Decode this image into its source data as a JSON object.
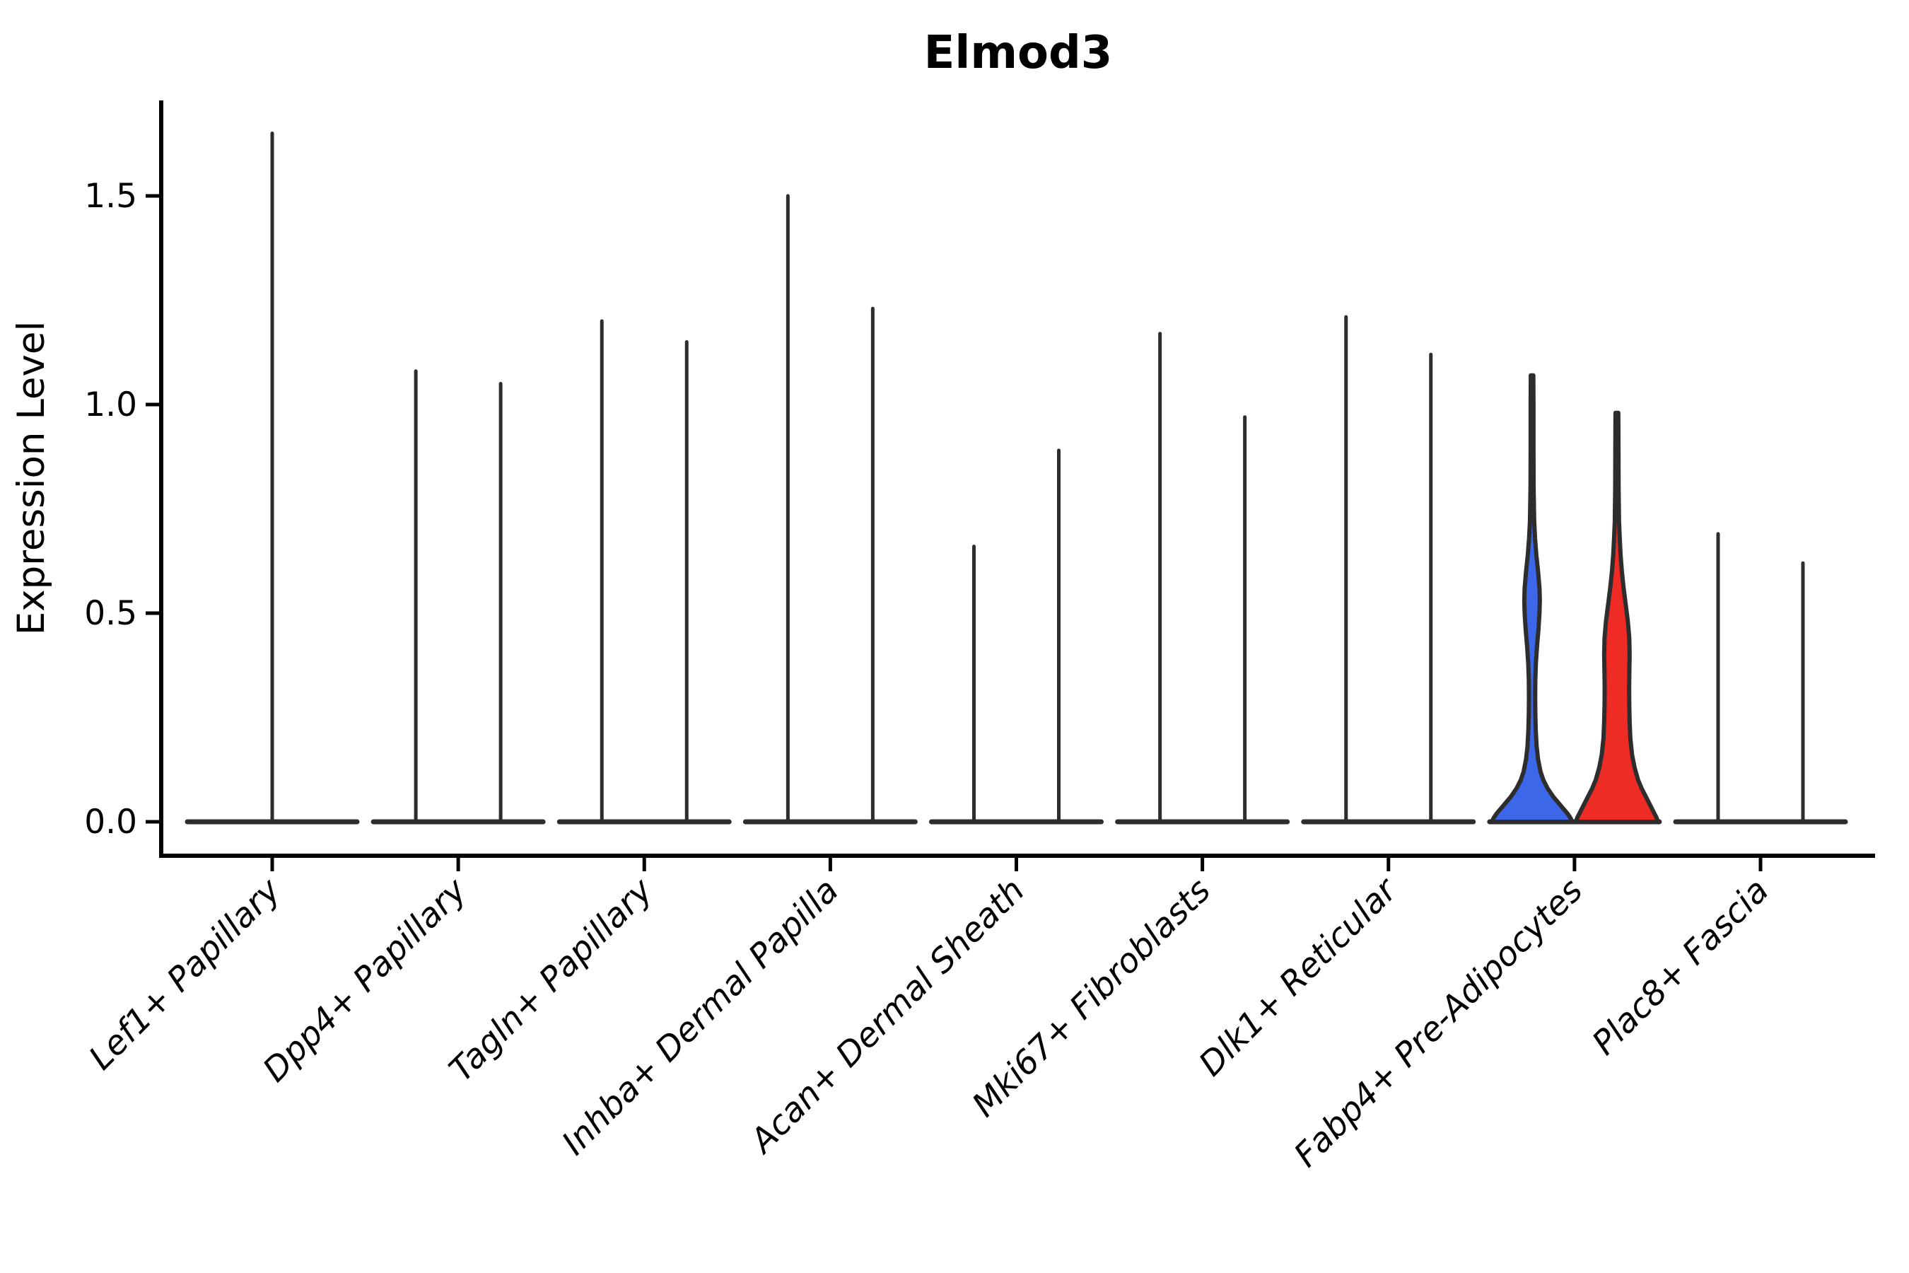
{
  "figure": {
    "background": "#ffffff",
    "outline_color": "#2d2d2d",
    "axis_color": "#000000"
  },
  "chart_data": {
    "type": "violin",
    "title": "Elmod3",
    "xlabel": "",
    "ylabel": "Expression Level",
    "ylim": [
      -0.08,
      1.73
    ],
    "yticks": [
      0.0,
      0.5,
      1.0,
      1.5
    ],
    "ytick_labels": [
      "0.0",
      "0.5",
      "1.0",
      "1.5"
    ],
    "grid": "off",
    "legend": "none",
    "categories": [
      "Lef1+ Papillary",
      "Dpp4+ Papillary",
      "Tagln+ Papillary",
      "Inhba+ Dermal Papilla",
      "Acan+ Dermal Sheath",
      "Mki67+ Fibroblasts",
      "Dlk1+ Reticular",
      "Fabp4+ Pre-Adipocytes",
      "Plac8+ Fascia"
    ],
    "series": [
      {
        "category": "Lef1+ Papillary",
        "violins": [
          {
            "position": "center",
            "max": 1.65,
            "fill": "none"
          }
        ]
      },
      {
        "category": "Dpp4+ Papillary",
        "violins": [
          {
            "position": "left",
            "max": 1.08,
            "fill": "none"
          },
          {
            "position": "right",
            "max": 1.05,
            "fill": "none"
          }
        ]
      },
      {
        "category": "Tagln+ Papillary",
        "violins": [
          {
            "position": "left",
            "max": 1.2,
            "fill": "none"
          },
          {
            "position": "right",
            "max": 1.15,
            "fill": "none"
          }
        ]
      },
      {
        "category": "Inhba+ Dermal Papilla",
        "violins": [
          {
            "position": "left",
            "max": 1.5,
            "fill": "none"
          },
          {
            "position": "right",
            "max": 1.23,
            "fill": "none"
          }
        ]
      },
      {
        "category": "Acan+ Dermal Sheath",
        "violins": [
          {
            "position": "left",
            "max": 0.66,
            "fill": "none"
          },
          {
            "position": "right",
            "max": 0.89,
            "fill": "none"
          }
        ]
      },
      {
        "category": "Mki67+ Fibroblasts",
        "violins": [
          {
            "position": "left",
            "max": 1.17,
            "fill": "none"
          },
          {
            "position": "right",
            "max": 0.97,
            "fill": "none"
          }
        ]
      },
      {
        "category": "Dlk1+ Reticular",
        "violins": [
          {
            "position": "left",
            "max": 1.21,
            "fill": "none"
          },
          {
            "position": "right",
            "max": 1.12,
            "fill": "none"
          }
        ]
      },
      {
        "category": "Fabp4+ Pre-Adipocytes",
        "violins": [
          {
            "position": "left",
            "max": 1.07,
            "fill": "#3b67e8",
            "profile": [
              [
                0.0,
                57
              ],
              [
                0.01,
                54
              ],
              [
                0.02,
                50
              ],
              [
                0.03,
                45
              ],
              [
                0.04,
                40
              ],
              [
                0.05,
                35
              ],
              [
                0.06,
                30
              ],
              [
                0.08,
                22
              ],
              [
                0.1,
                16
              ],
              [
                0.12,
                12
              ],
              [
                0.15,
                8.5
              ],
              [
                0.18,
                6.5
              ],
              [
                0.22,
                5.2
              ],
              [
                0.26,
                4.6
              ],
              [
                0.3,
                4.4
              ],
              [
                0.34,
                4.6
              ],
              [
                0.38,
                5.4
              ],
              [
                0.42,
                7
              ],
              [
                0.46,
                9
              ],
              [
                0.5,
                10.5
              ],
              [
                0.53,
                11
              ],
              [
                0.56,
                10.5
              ],
              [
                0.6,
                8.5
              ],
              [
                0.64,
                6
              ],
              [
                0.68,
                4.2
              ],
              [
                0.72,
                3.0
              ],
              [
                0.8,
                2.2
              ],
              [
                0.9,
                2.0
              ],
              [
                1.0,
                2.0
              ],
              [
                1.07,
                1.8
              ]
            ]
          },
          {
            "position": "right",
            "max": 0.98,
            "fill": "#ee2b24",
            "profile": [
              [
                0.0,
                58
              ],
              [
                0.01,
                56
              ],
              [
                0.02,
                53
              ],
              [
                0.04,
                47
              ],
              [
                0.06,
                41
              ],
              [
                0.08,
                35
              ],
              [
                0.1,
                30
              ],
              [
                0.13,
                25
              ],
              [
                0.16,
                21.5
              ],
              [
                0.2,
                19
              ],
              [
                0.24,
                18
              ],
              [
                0.28,
                17.5
              ],
              [
                0.32,
                17.3
              ],
              [
                0.36,
                17.6
              ],
              [
                0.4,
                18
              ],
              [
                0.44,
                17.5
              ],
              [
                0.48,
                15.5
              ],
              [
                0.52,
                12.5
              ],
              [
                0.56,
                9.5
              ],
              [
                0.6,
                7
              ],
              [
                0.64,
                5.2
              ],
              [
                0.68,
                4
              ],
              [
                0.72,
                3.0
              ],
              [
                0.8,
                2.4
              ],
              [
                0.9,
                2.2
              ],
              [
                0.98,
                2.0
              ]
            ]
          }
        ]
      },
      {
        "category": "Plac8+ Fascia",
        "violins": [
          {
            "position": "left",
            "max": 0.69,
            "fill": "none"
          },
          {
            "position": "right",
            "max": 0.62,
            "fill": "none"
          }
        ]
      }
    ],
    "colors": {
      "violin_outline": "#2d2d2d",
      "group_left_fill": "#3b67e8",
      "group_right_fill": "#ee2b24"
    }
  }
}
